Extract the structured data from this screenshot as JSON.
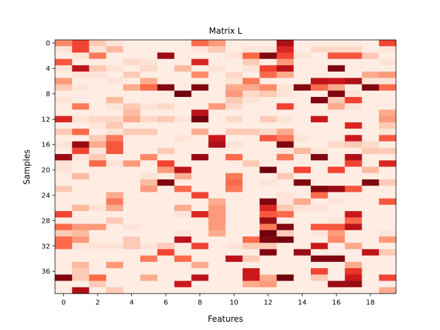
{
  "chart_data": {
    "type": "heatmap",
    "title": "Matrix L",
    "xlabel": "Features",
    "ylabel": "Samples",
    "n_rows": 40,
    "n_cols": 20,
    "x_ticks": [
      0,
      2,
      4,
      6,
      8,
      10,
      12,
      14,
      16,
      18
    ],
    "y_ticks": [
      0,
      4,
      8,
      12,
      16,
      20,
      24,
      28,
      32,
      36
    ],
    "colormap": "Reds",
    "value_range": [
      0,
      1
    ],
    "grid": false,
    "values": [
      [
        0.4,
        0.6,
        0.2,
        0.1,
        0.05,
        0.05,
        0.05,
        0.05,
        0.5,
        0.35,
        0.05,
        0.05,
        0.05,
        0.85,
        0.05,
        0.05,
        0.05,
        0.05,
        0.05,
        0.6
      ],
      [
        0.1,
        0.6,
        0.1,
        0.25,
        0.05,
        0.05,
        0.05,
        0.05,
        0.1,
        0.2,
        0.05,
        0.1,
        0.1,
        0.7,
        0.05,
        0.15,
        0.15,
        0.15,
        0.05,
        0.1
      ],
      [
        0.05,
        0.1,
        0.45,
        0.05,
        0.05,
        0.05,
        0.9,
        0.05,
        0.05,
        0.05,
        0.1,
        0.5,
        0.95,
        0.6,
        0.1,
        0.05,
        0.55,
        0.55,
        0.2,
        0.05
      ],
      [
        0.55,
        0.05,
        0.05,
        0.05,
        0.15,
        0.1,
        0.05,
        0.05,
        0.7,
        0.05,
        0.05,
        0.2,
        0.05,
        0.35,
        0.05,
        0.05,
        0.05,
        0.05,
        0.05,
        0.1
      ],
      [
        0.1,
        0.8,
        0.2,
        0.1,
        0.05,
        0.15,
        0.05,
        0.25,
        0.05,
        0.1,
        0.05,
        0.1,
        0.6,
        0.8,
        0.05,
        0.05,
        0.95,
        0.05,
        0.05,
        0.05
      ],
      [
        0.05,
        0.1,
        0.1,
        0.05,
        0.2,
        0.05,
        0.05,
        0.05,
        0.4,
        0.05,
        0.15,
        0.05,
        0.5,
        0.3,
        0.05,
        0.05,
        0.05,
        0.05,
        0.3,
        0.35
      ],
      [
        0.35,
        0.05,
        0.05,
        0.1,
        0.05,
        0.3,
        0.05,
        0.05,
        0.05,
        0.05,
        0.1,
        0.45,
        0.05,
        0.05,
        0.05,
        0.8,
        0.75,
        0.85,
        0.1,
        0.1
      ],
      [
        0.2,
        0.1,
        0.05,
        0.05,
        0.3,
        0.5,
        0.95,
        0.05,
        0.95,
        0.05,
        0.3,
        0.3,
        0.4,
        0.1,
        0.95,
        0.5,
        0.3,
        0.05,
        0.95,
        0.5
      ],
      [
        0.05,
        0.05,
        0.05,
        0.05,
        0.05,
        0.05,
        0.05,
        0.98,
        0.05,
        0.05,
        0.35,
        0.15,
        0.2,
        0.1,
        0.05,
        0.05,
        0.95,
        0.1,
        0.05,
        0.05
      ],
      [
        0.1,
        0.05,
        0.05,
        0.25,
        0.05,
        0.05,
        0.05,
        0.05,
        0.05,
        0.05,
        0.2,
        0.1,
        0.05,
        0.05,
        0.05,
        0.95,
        0.2,
        0.6,
        0.05,
        0.05
      ],
      [
        0.05,
        0.45,
        0.05,
        0.1,
        0.2,
        0.1,
        0.15,
        0.05,
        0.05,
        0.35,
        0.15,
        0.05,
        0.05,
        0.6,
        0.05,
        0.05,
        0.3,
        0.1,
        0.05,
        0.05
      ],
      [
        0.05,
        0.05,
        0.05,
        0.05,
        0.25,
        0.05,
        0.05,
        0.05,
        0.8,
        0.05,
        0.05,
        0.05,
        0.05,
        0.05,
        0.05,
        0.05,
        0.05,
        0.05,
        0.05,
        0.3
      ],
      [
        0.7,
        0.1,
        0.15,
        0.15,
        0.3,
        0.15,
        0.2,
        0.1,
        0.98,
        0.05,
        0.15,
        0.05,
        0.2,
        0.1,
        0.05,
        0.75,
        0.05,
        0.05,
        0.05,
        0.35
      ],
      [
        0.05,
        0.05,
        0.1,
        0.2,
        0.05,
        0.05,
        0.05,
        0.05,
        0.05,
        0.05,
        0.05,
        0.05,
        0.05,
        0.05,
        0.05,
        0.05,
        0.05,
        0.7,
        0.05,
        0.2
      ],
      [
        0.2,
        0.5,
        0.05,
        0.1,
        0.2,
        0.2,
        0.05,
        0.05,
        0.3,
        0.05,
        0.2,
        0.2,
        0.15,
        0.3,
        0.05,
        0.05,
        0.05,
        0.05,
        0.05,
        0.1
      ],
      [
        0.05,
        0.05,
        0.2,
        0.45,
        0.05,
        0.05,
        0.05,
        0.1,
        0.05,
        0.75,
        0.05,
        0.05,
        0.55,
        0.45,
        0.1,
        0.05,
        0.05,
        0.75,
        0.05,
        0.55
      ],
      [
        0.1,
        0.9,
        0.3,
        0.55,
        0.05,
        0.05,
        0.05,
        0.05,
        0.05,
        0.85,
        0.1,
        0.05,
        0.05,
        0.95,
        0.05,
        0.05,
        0.15,
        0.2,
        0.15,
        0.05
      ],
      [
        0.05,
        0.6,
        0.1,
        0.55,
        0.05,
        0.05,
        0.2,
        0.05,
        0.05,
        0.05,
        0.05,
        0.05,
        0.05,
        0.1,
        0.25,
        0.1,
        0.05,
        0.05,
        0.2,
        0.2
      ],
      [
        0.9,
        0.1,
        0.2,
        0.05,
        0.05,
        0.4,
        0.05,
        0.05,
        0.9,
        0.05,
        0.5,
        0.05,
        0.05,
        0.45,
        0.05,
        0.95,
        0.05,
        0.85,
        0.05,
        0.05
      ],
      [
        0.1,
        0.05,
        0.5,
        0.1,
        0.35,
        0.05,
        0.6,
        0.05,
        0.05,
        0.05,
        0.05,
        0.2,
        0.05,
        0.05,
        0.05,
        0.05,
        0.05,
        0.6,
        0.05,
        0.7
      ],
      [
        0.1,
        0.05,
        0.05,
        0.05,
        0.05,
        0.05,
        0.35,
        0.8,
        0.05,
        0.05,
        0.05,
        0.05,
        0.98,
        0.05,
        0.6,
        0.05,
        0.6,
        0.05,
        0.25,
        0.05
      ],
      [
        0.05,
        0.25,
        0.05,
        0.05,
        0.05,
        0.1,
        0.05,
        0.3,
        0.05,
        0.05,
        0.45,
        0.05,
        0.05,
        0.2,
        0.05,
        0.05,
        0.05,
        0.05,
        0.05,
        0.05
      ],
      [
        0.05,
        0.05,
        0.05,
        0.05,
        0.05,
        0.25,
        0.95,
        0.05,
        0.05,
        0.05,
        0.5,
        0.05,
        0.1,
        0.05,
        0.95,
        0.05,
        0.05,
        0.05,
        0.95,
        0.2
      ],
      [
        0.2,
        0.05,
        0.05,
        0.05,
        0.05,
        0.35,
        0.05,
        0.5,
        0.05,
        0.05,
        0.45,
        0.05,
        0.05,
        0.05,
        0.05,
        0.95,
        0.9,
        0.55,
        0.05,
        0.05
      ],
      [
        0.05,
        0.05,
        0.05,
        0.3,
        0.05,
        0.05,
        0.05,
        0.05,
        0.6,
        0.05,
        0.05,
        0.05,
        0.05,
        0.1,
        0.05,
        0.5,
        0.05,
        0.05,
        0.05,
        0.05
      ],
      [
        0.05,
        0.05,
        0.05,
        0.45,
        0.05,
        0.05,
        0.05,
        0.05,
        0.05,
        0.3,
        0.05,
        0.05,
        0.95,
        0.1,
        0.3,
        0.05,
        0.1,
        0.05,
        0.05,
        0.55
      ],
      [
        0.05,
        0.25,
        0.1,
        0.3,
        0.05,
        0.05,
        0.05,
        0.3,
        0.05,
        0.35,
        0.05,
        0.05,
        0.7,
        0.2,
        0.1,
        0.1,
        0.05,
        0.05,
        0.05,
        0.05
      ],
      [
        0.6,
        0.05,
        0.05,
        0.05,
        0.05,
        0.05,
        0.05,
        0.1,
        0.7,
        0.35,
        0.05,
        0.05,
        0.55,
        0.5,
        0.05,
        0.05,
        0.05,
        0.75,
        0.05,
        0.05
      ],
      [
        0.05,
        0.05,
        0.05,
        0.2,
        0.05,
        0.05,
        0.05,
        0.05,
        0.05,
        0.35,
        0.05,
        0.05,
        0.9,
        0.05,
        0.05,
        0.05,
        0.1,
        0.5,
        0.05,
        0.05
      ],
      [
        0.5,
        0.35,
        0.35,
        0.05,
        0.1,
        0.05,
        0.05,
        0.05,
        0.05,
        0.35,
        0.05,
        0.05,
        0.45,
        0.95,
        0.05,
        0.55,
        0.55,
        0.8,
        0.05,
        0.05
      ],
      [
        0.2,
        0.25,
        0.05,
        0.05,
        0.05,
        0.05,
        0.05,
        0.1,
        0.05,
        0.3,
        0.05,
        0.05,
        0.98,
        0.2,
        0.05,
        0.1,
        0.35,
        0.05,
        0.05,
        0.1
      ],
      [
        0.5,
        0.35,
        0.05,
        0.05,
        0.2,
        0.05,
        0.05,
        0.8,
        0.05,
        0.05,
        0.05,
        0.5,
        0.95,
        0.98,
        0.05,
        0.05,
        0.4,
        0.05,
        0.05,
        0.35
      ],
      [
        0.5,
        0.1,
        0.1,
        0.1,
        0.2,
        0.1,
        0.2,
        0.05,
        0.6,
        0.05,
        0.1,
        0.2,
        0.2,
        0.05,
        0.05,
        0.75,
        0.05,
        0.3,
        0.05,
        0.05
      ],
      [
        0.05,
        0.05,
        0.05,
        0.05,
        0.05,
        0.05,
        0.6,
        0.05,
        0.05,
        0.05,
        0.05,
        0.05,
        0.95,
        0.05,
        0.9,
        0.05,
        0.05,
        0.05,
        0.8,
        0.2
      ],
      [
        0.05,
        0.05,
        0.05,
        0.05,
        0.05,
        0.45,
        0.05,
        0.5,
        0.05,
        0.05,
        0.8,
        0.2,
        0.05,
        0.05,
        0.05,
        0.95,
        0.95,
        0.05,
        0.05,
        0.05
      ],
      [
        0.05,
        0.25,
        0.05,
        0.35,
        0.05,
        0.05,
        0.05,
        0.05,
        0.3,
        0.05,
        0.05,
        0.05,
        0.05,
        0.05,
        0.05,
        0.05,
        0.05,
        0.3,
        0.05,
        0.05
      ],
      [
        0.05,
        0.2,
        0.05,
        0.05,
        0.05,
        0.05,
        0.05,
        0.05,
        0.05,
        0.05,
        0.05,
        0.75,
        0.05,
        0.05,
        0.05,
        0.6,
        0.05,
        0.65,
        0.05,
        0.05
      ],
      [
        0.95,
        0.2,
        0.5,
        0.05,
        0.05,
        0.3,
        0.05,
        0.05,
        0.8,
        0.05,
        0.05,
        0.75,
        0.3,
        0.98,
        0.05,
        0.2,
        0.05,
        0.75,
        0.05,
        0.6
      ],
      [
        0.05,
        0.05,
        0.2,
        0.05,
        0.05,
        0.05,
        0.05,
        0.75,
        0.05,
        0.05,
        0.05,
        0.3,
        0.35,
        0.05,
        0.05,
        0.05,
        0.9,
        0.9,
        0.05,
        0.05
      ],
      [
        0.05,
        0.85,
        0.05,
        0.2,
        0.05,
        0.05,
        0.05,
        0.05,
        0.05,
        0.05,
        0.05,
        0.05,
        0.05,
        0.05,
        0.05,
        0.05,
        0.05,
        0.05,
        0.05,
        0.3
      ]
    ]
  }
}
